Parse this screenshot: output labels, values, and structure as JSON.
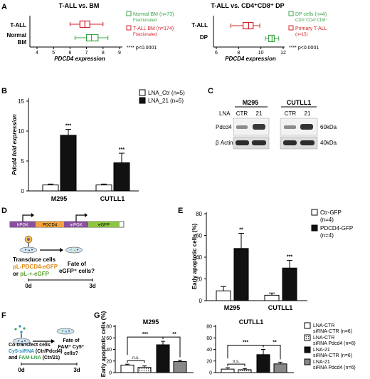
{
  "colors": {
    "red": "#d2232a",
    "green": "#3ba548",
    "black": "#111111",
    "white": "#ffffff",
    "grey": "#888888",
    "purple": "#8a4f9e",
    "orange": "#f2a33a",
    "lightgreen": "#8dc63f",
    "blot": "#6d6d6d"
  },
  "panels": {
    "A": {
      "letter": "A",
      "left": {
        "title": "T-ALL vs. BM",
        "xlabel": "PDCD4 expression",
        "ticks": [
          "4",
          "5",
          "6",
          "7",
          "8",
          "9"
        ],
        "groups": [
          {
            "label": "T-ALL",
            "color": "#d2232a",
            "min": 6.0,
            "q1": 6.6,
            "median": 6.9,
            "q3": 7.2,
            "max": 8.0
          },
          {
            "label": "Normal BM",
            "color": "#3ba548",
            "min": 6.3,
            "q1": 7.0,
            "median": 7.3,
            "q3": 7.7,
            "max": 8.3
          }
        ],
        "legend": [
          {
            "text": "Normal BM (n=73)",
            "sub": "Fractionated",
            "color": "#3ba548"
          },
          {
            "text": "T-ALL BM (n=174)",
            "sub": "Fractionated",
            "color": "#d2232a"
          }
        ],
        "pvalue": "**** p<0.0001"
      },
      "right": {
        "title": "T-ALL vs. CD4⁺CD8⁺ DP",
        "xlabel": "PDCD4 expression",
        "ticks": [
          "6",
          "8",
          "10",
          "12"
        ],
        "groups": [
          {
            "label": "T-ALL",
            "color": "#d2232a",
            "min": 7.3,
            "q1": 8.4,
            "median": 8.9,
            "q3": 9.3,
            "max": 9.9
          },
          {
            "label": "DP",
            "color": "#3ba548",
            "min": 10.4,
            "q1": 10.7,
            "median": 11.0,
            "q3": 11.2,
            "max": 11.6
          }
        ],
        "legend": [
          {
            "text": "DP cells (n=4)",
            "sub": "CD3⁺CD4⁺CD8⁺",
            "color": "#3ba548"
          },
          {
            "text": "Primary T-ALL",
            "sub": "(n=15)",
            "color": "#d2232a"
          }
        ],
        "pvalue": "**** p<0.0001"
      }
    },
    "B": {
      "letter": "B",
      "ylabel": "Pdcd4 fold expression",
      "yticks": [
        "0",
        "5",
        "10",
        "15"
      ],
      "categories": [
        "M295",
        "CUTLL1"
      ],
      "series": [
        {
          "name": "LNA_Ctr (n=5)",
          "color": "#ffffff",
          "values": [
            1.0,
            1.0
          ],
          "err": [
            0.15,
            0.15
          ]
        },
        {
          "name": "LNA_21 (n=5)",
          "color": "#111111",
          "values": [
            9.3,
            4.7
          ],
          "err": [
            1.0,
            1.6
          ]
        }
      ],
      "sig": [
        "***",
        "***"
      ]
    },
    "C": {
      "letter": "C",
      "cell_lines": [
        "M295",
        "CUTLL1"
      ],
      "row_label": "LNA",
      "lanes": [
        "CTR",
        "21",
        "CTR",
        "21"
      ],
      "bands": [
        "Pdcd4",
        "β Actin"
      ],
      "sizes": [
        "60kDa",
        "40kDa"
      ]
    },
    "D": {
      "letter": "D",
      "elements": [
        "hPGK",
        "PDCD4",
        "mPGK",
        "eGFP"
      ],
      "step_text": "Transduce cells",
      "construct1": "pL-PDCD4-eGFP",
      "construct_or": "or ",
      "construct2": "pL-+-eGFP",
      "fate_line1": "Fate of",
      "fate_line2": "eGFP⁺ cells?",
      "day0": "0d",
      "day3": "3d"
    },
    "E": {
      "letter": "E",
      "ylabel": "Early apoptotic cells (%)",
      "yticks": [
        "0",
        "20",
        "40",
        "60",
        "80"
      ],
      "categories": [
        "M295",
        "CUTLL1"
      ],
      "series": [
        {
          "name": "Ctr-GFP",
          "n": "(n=4)",
          "color": "#ffffff",
          "values": [
            9,
            5
          ],
          "err": [
            4,
            2
          ]
        },
        {
          "name": "PDCD4-GFP",
          "n": "(n=4)",
          "color": "#111111",
          "values": [
            48,
            30
          ],
          "err": [
            14,
            7
          ]
        }
      ],
      "sig": [
        "**",
        "***"
      ]
    },
    "F": {
      "letter": "F",
      "line1": "Co-transfect cells",
      "line2a": "Cy5-siRNA",
      "line2b": " (Ctr/Pdcd4)",
      "line3a": "and ",
      "line3b": "FAM-LNA",
      "line3c": " (Ctr/21)",
      "fate_line1": "Fate of",
      "fate_line2": "FAM⁺ Cy5⁺",
      "fate_line3": "cells?",
      "day0": "0d",
      "day3": "3d"
    },
    "G": {
      "letter": "G",
      "ylabel": "Early apoptotic cells (%)",
      "yticks": [
        "0",
        "20",
        "40",
        "60",
        "80"
      ],
      "charts": [
        {
          "title": "M295",
          "values": [
            13,
            9,
            48,
            19
          ],
          "err": [
            1.5,
            2.5,
            6,
            2.5
          ]
        },
        {
          "title": "CUTLL1",
          "values": [
            6,
            5,
            31,
            15
          ],
          "err": [
            2.5,
            2,
            9,
            3
          ]
        }
      ],
      "series": [
        {
          "name": "LNA-CTR",
          "sub": "siRNA-CTR (n=6)",
          "fill": "#ffffff",
          "pattern": "none"
        },
        {
          "name": "LNA-CTR",
          "sub": "siRNA Pdcd4 (n=6)",
          "fill": "#ffffff",
          "pattern": "dots"
        },
        {
          "name": "LNA-21",
          "sub": "siRNA-CTR (n=6)",
          "fill": "#111111",
          "pattern": "none"
        },
        {
          "name": "LNA-21",
          "sub": "siRNA Pdcd4 (n=6)",
          "fill": "#888888",
          "pattern": "none"
        }
      ],
      "brackets": {
        "ns": "n.s.",
        "s1": "***",
        "s2": "**"
      }
    }
  }
}
